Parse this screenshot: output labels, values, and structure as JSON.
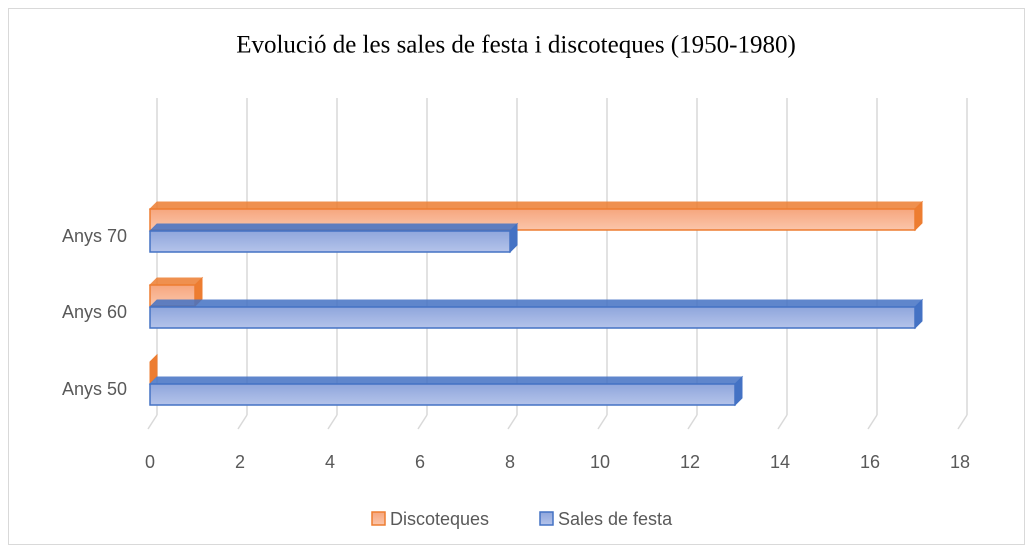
{
  "chart_data": {
    "type": "bar",
    "orientation": "horizontal",
    "title": "Evolució de les sales de festa i discoteques (1950-1980)",
    "categories": [
      "Anys 50",
      "Anys 60",
      "Anys 70"
    ],
    "series": [
      {
        "name": "Discoteques",
        "color": "#ed7d31",
        "values": [
          0,
          1,
          17
        ]
      },
      {
        "name": "Sales de festa",
        "color": "#4472c4",
        "values": [
          13,
          17,
          8
        ]
      }
    ],
    "xlim": [
      0,
      18
    ],
    "xticks": [
      0,
      2,
      4,
      6,
      8,
      10,
      12,
      14,
      16,
      18
    ],
    "grid": true,
    "legend": "bottom"
  }
}
